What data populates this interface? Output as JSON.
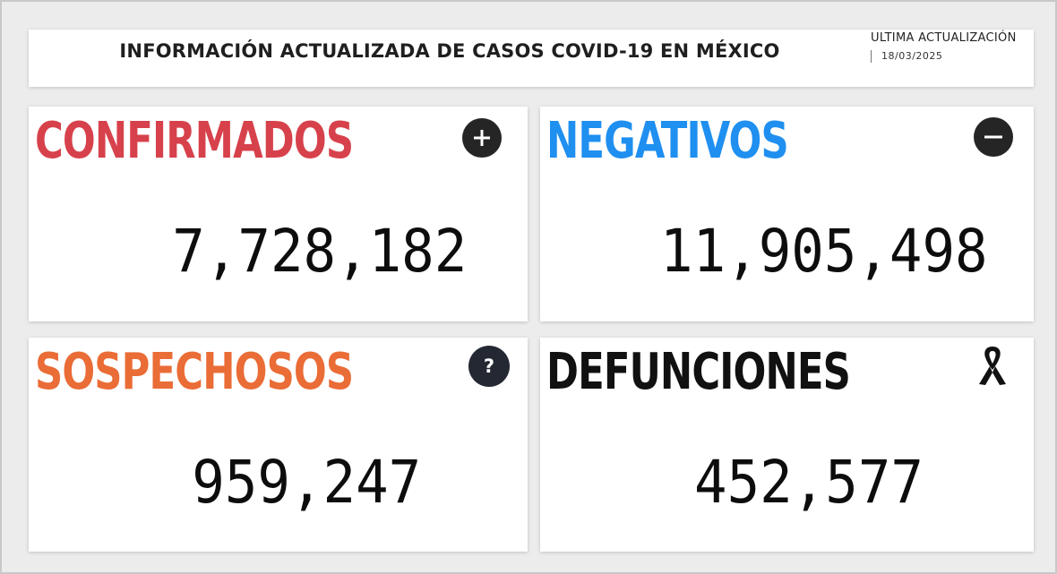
{
  "header": {
    "title": "INFORMACIÓN ACTUALIZADA DE CASOS COVID-19 EN MÉXICO",
    "update_label": "ULTIMA ACTUALIZACIÓN",
    "update_date": "18/03/2025"
  },
  "stats": {
    "confirmados": {
      "label": "CONFIRMADOS",
      "value": "7,728,182",
      "color": "#d7414b",
      "icon": "plus-icon"
    },
    "negativos": {
      "label": "NEGATIVOS",
      "value": "11,905,498",
      "color": "#1f8ff0",
      "icon": "minus-icon"
    },
    "sospechosos": {
      "label": "SOSPECHOSOS",
      "value": "959,247",
      "color": "#ea6c36",
      "icon": "question-icon"
    },
    "defunciones": {
      "label": "DEFUNCIONES",
      "value": "452,577",
      "color": "#111111",
      "icon": "mourning-ribbon-icon"
    }
  },
  "colors": {
    "icon_dark": "#252525",
    "icon_navy": "#242833"
  }
}
